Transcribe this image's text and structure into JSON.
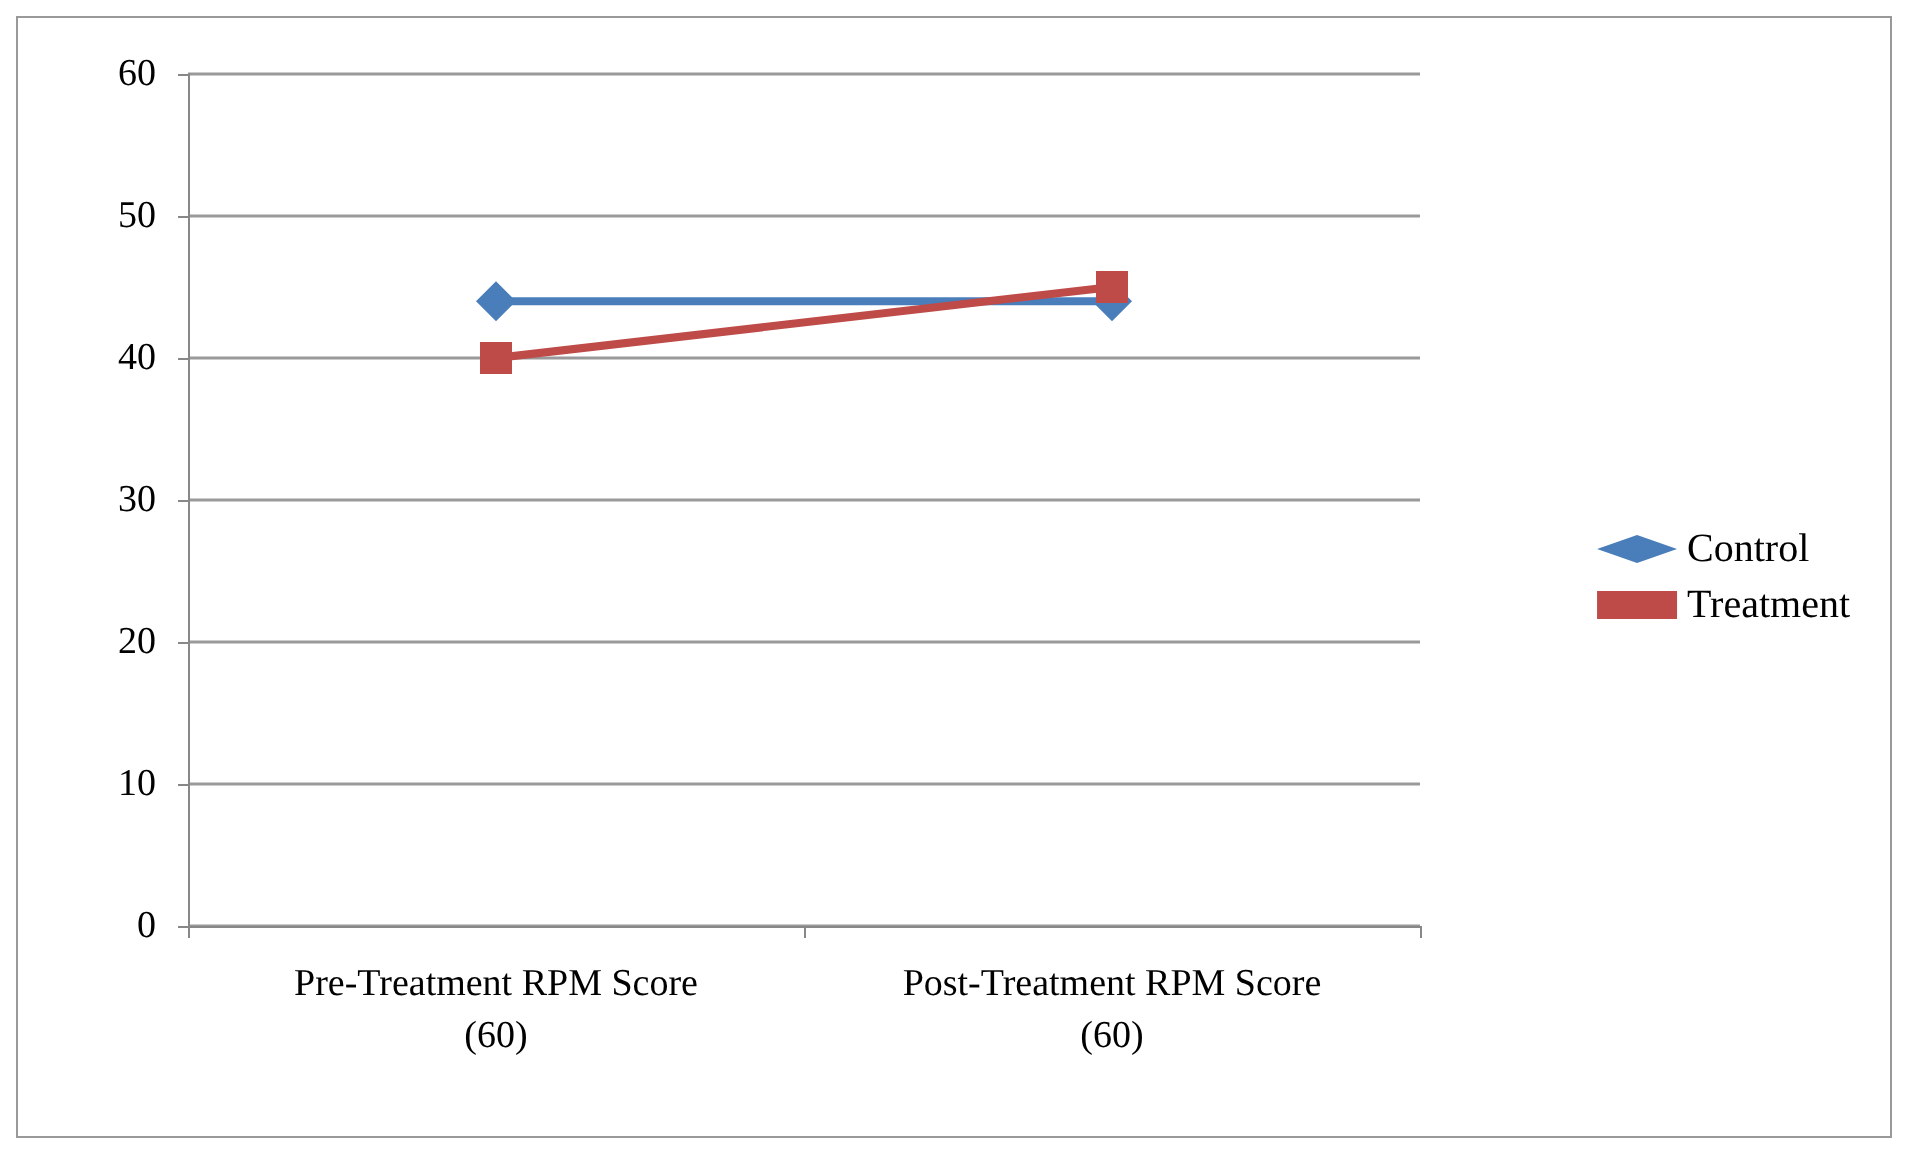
{
  "chart_data": {
    "type": "line",
    "categories": [
      "Pre-Treatment RPM Score\n(60)",
      "Post-Treatment RPM Score\n(60)"
    ],
    "series": [
      {
        "name": "Control",
        "color": "#4a7ebb",
        "marker": "diamond",
        "values": [
          44,
          44
        ]
      },
      {
        "name": "Treatment",
        "color": "#be4b48",
        "marker": "square",
        "values": [
          40,
          45
        ]
      }
    ],
    "ylim": [
      0,
      60
    ],
    "yticks": [
      0,
      10,
      20,
      30,
      40,
      50,
      60
    ],
    "grid": "y",
    "legend": "right"
  }
}
